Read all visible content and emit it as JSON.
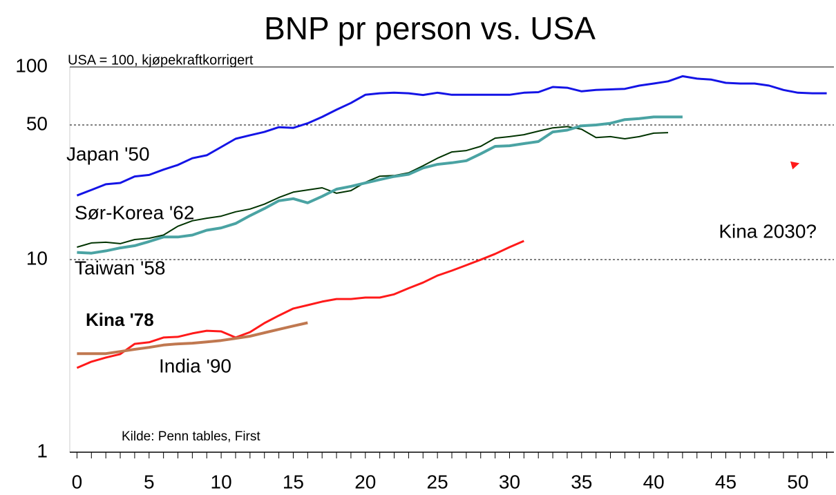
{
  "chart_data": {
    "type": "line",
    "title": "BNP pr person vs. USA",
    "subtitle": "USA = 100, kjøpekraftkorrigert",
    "note": "Kilde: Penn tables,  First",
    "x": [
      0,
      1,
      2,
      3,
      4,
      5,
      6,
      7,
      8,
      9,
      10,
      11,
      12,
      13,
      14,
      15,
      16,
      17,
      18,
      19,
      20,
      21,
      22,
      23,
      24,
      25,
      26,
      27,
      28,
      29,
      30,
      31,
      32,
      33,
      34,
      35,
      36,
      37,
      38,
      39,
      40,
      41,
      42,
      43,
      44,
      45,
      46,
      47,
      48,
      49,
      50,
      51,
      52
    ],
    "xlim": [
      -0.5,
      52.5
    ],
    "xticks": [
      0,
      5,
      10,
      15,
      20,
      25,
      30,
      35,
      40,
      45,
      50
    ],
    "ylim": [
      1,
      100
    ],
    "yticks": [
      1,
      10,
      50,
      100
    ],
    "log_y": true,
    "grid": true,
    "series": [
      {
        "name": "Japan '50",
        "color": "#1414e6",
        "width": 3,
        "values": [
          21.5,
          23,
          24.6,
          25,
          27,
          27.5,
          29.3,
          31,
          33.6,
          34.8,
          38.4,
          42.4,
          44.2,
          46,
          48.7,
          48.3,
          51,
          55,
          60,
          65,
          71.7,
          73,
          73.5,
          73,
          71.5,
          73.5,
          71.7,
          71.7,
          71.7,
          71.7,
          71.7,
          73.5,
          74,
          78.7,
          78,
          74.7,
          76,
          76.5,
          77,
          80,
          82,
          84.2,
          89.5,
          87,
          86,
          82.7,
          82,
          82,
          80,
          76,
          73.5,
          73,
          73
        ]
      },
      {
        "name": "Sør-Korea '62",
        "color": "#003300",
        "width": 2,
        "values": [
          11.6,
          12.2,
          12.3,
          12.1,
          12.7,
          12.9,
          13.4,
          14.9,
          15.9,
          16.4,
          16.8,
          17.7,
          18.3,
          19.4,
          21,
          22.4,
          23,
          23.6,
          22.1,
          22.8,
          25.2,
          27.1,
          27.3,
          28.2,
          30.7,
          33.6,
          36.2,
          36.8,
          38.7,
          42.7,
          43.5,
          44.5,
          46.4,
          48.3,
          49,
          47.5,
          43,
          43.5,
          42.4,
          43.5,
          45.3,
          45.6,
          null,
          null,
          null,
          null,
          null,
          null,
          null,
          null,
          null,
          null,
          null
        ]
      },
      {
        "name": "Taiwan '58",
        "color": "#4aa3a3",
        "width": 4,
        "values": [
          10.9,
          10.8,
          11.1,
          11.5,
          11.8,
          12.4,
          13.1,
          13.1,
          13.4,
          14.2,
          14.6,
          15.4,
          16.9,
          18.4,
          20.2,
          20.7,
          19.7,
          21.3,
          23.2,
          24,
          25,
          26,
          27,
          27.7,
          29.9,
          31.2,
          31.8,
          32.6,
          35.4,
          38.7,
          39,
          40,
          41,
          46,
          47,
          49.5,
          50,
          51,
          53.3,
          54,
          55,
          55,
          55,
          null,
          null,
          null,
          null,
          null,
          null,
          null,
          null,
          null,
          null
        ]
      },
      {
        "name": "Kina '78",
        "color": "#ff1a1a",
        "width": 3,
        "bold": true,
        "values": [
          2.74,
          2.95,
          3.1,
          3.23,
          3.65,
          3.72,
          3.94,
          3.97,
          4.14,
          4.27,
          4.24,
          3.94,
          4.2,
          4.68,
          5.12,
          5.57,
          5.8,
          6.05,
          6.24,
          6.24,
          6.35,
          6.35,
          6.6,
          7.1,
          7.6,
          8.26,
          8.76,
          9.35,
          9.98,
          10.7,
          11.6,
          12.5,
          null,
          null,
          null,
          null,
          null,
          null,
          null,
          null,
          null,
          null,
          null,
          null,
          null,
          null,
          null,
          null,
          null,
          null,
          null,
          null,
          null
        ]
      },
      {
        "name": "India '90",
        "color": "#c07850",
        "label_color": "#8b1a1a",
        "width": 4,
        "values": [
          3.25,
          3.25,
          3.25,
          3.33,
          3.42,
          3.5,
          3.6,
          3.65,
          3.68,
          3.74,
          3.8,
          3.9,
          4.0,
          4.17,
          4.34,
          4.52,
          4.7,
          null,
          null,
          null,
          null,
          null,
          null,
          null,
          null,
          null,
          null,
          null,
          null,
          null,
          null,
          null,
          null,
          null,
          null,
          null,
          null,
          null,
          null,
          null,
          null,
          null,
          null,
          null,
          null,
          null,
          null,
          null,
          null,
          null,
          null,
          null,
          null
        ]
      },
      {
        "name": "Kina 2030?",
        "color": "#ff1a1a",
        "width": 3,
        "dashed": true,
        "arrow": true,
        "values": [
          null,
          null,
          null,
          null,
          null,
          null,
          null,
          null,
          null,
          null,
          null,
          null,
          null,
          null,
          null,
          null,
          null,
          null,
          null,
          null,
          null,
          null,
          null,
          null,
          null,
          null,
          null,
          null,
          null,
          null,
          null,
          12.5,
          null,
          null,
          null,
          null,
          null,
          null,
          null,
          null,
          null,
          null,
          null,
          null,
          null,
          null,
          null,
          null,
          null,
          null,
          31.5,
          null,
          null
        ]
      }
    ]
  }
}
